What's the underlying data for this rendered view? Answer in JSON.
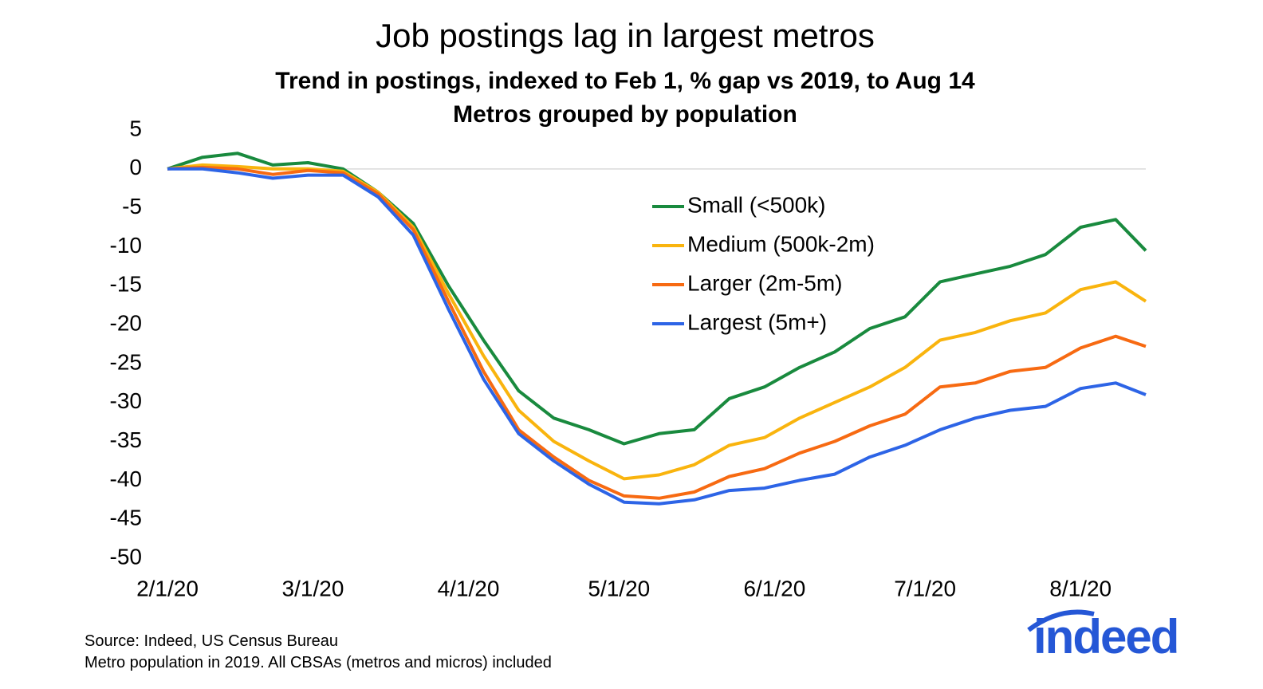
{
  "chart_data": {
    "type": "line",
    "title": "Job postings lag in largest metros",
    "subtitle": [
      "Trend in postings, indexed to Feb 1, % gap vs 2019, to Aug 14",
      "Metros grouped by population"
    ],
    "x": [
      "2/1/20",
      "2/8/20",
      "2/15/20",
      "2/22/20",
      "2/29/20",
      "3/7/20",
      "3/14/20",
      "3/21/20",
      "3/28/20",
      "4/4/20",
      "4/11/20",
      "4/18/20",
      "4/25/20",
      "5/2/20",
      "5/9/20",
      "5/16/20",
      "5/23/20",
      "5/30/20",
      "6/6/20",
      "6/13/20",
      "6/20/20",
      "6/27/20",
      "7/4/20",
      "7/11/20",
      "7/18/20",
      "7/25/20",
      "8/1/20",
      "8/8/20",
      "8/14/20"
    ],
    "series": [
      {
        "name": "Small (<500k)",
        "color": "#198a3e",
        "values": [
          0,
          1.5,
          2,
          0.5,
          0.8,
          0,
          -3,
          -7,
          -15,
          -22,
          -28.5,
          -32,
          -33.5,
          -35.3,
          -34,
          -33.5,
          -29.5,
          -28,
          -25.5,
          -23.5,
          -20.5,
          -19,
          -14.5,
          -13.5,
          -12.5,
          -11,
          -7.5,
          -6.5,
          -10.5
        ]
      },
      {
        "name": "Medium (500k-2m)",
        "color": "#f9b40e",
        "values": [
          0,
          0.5,
          0.3,
          0,
          0,
          -0.3,
          -3,
          -7.5,
          -16,
          -24,
          -31,
          -35,
          -37.5,
          -39.8,
          -39.3,
          -38,
          -35.5,
          -34.5,
          -32,
          -30,
          -28,
          -25.5,
          -22,
          -21,
          -19.5,
          -18.5,
          -15.5,
          -14.5,
          -17
        ]
      },
      {
        "name": "Larger (2m-5m)",
        "color": "#f76a12",
        "values": [
          0,
          0.2,
          0,
          -0.7,
          -0.2,
          -0.5,
          -3.2,
          -7.8,
          -17,
          -26,
          -33.5,
          -37,
          -40,
          -42,
          -42.3,
          -41.5,
          -39.5,
          -38.5,
          -36.5,
          -35,
          -33,
          -31.5,
          -28,
          -27.5,
          -26,
          -25.5,
          -23,
          -21.5,
          -22.8
        ]
      },
      {
        "name": "Largest (5m+)",
        "color": "#2d64e6",
        "values": [
          0,
          0,
          -0.5,
          -1.2,
          -0.8,
          -0.8,
          -3.6,
          -8.5,
          -18,
          -27,
          -34,
          -37.5,
          -40.5,
          -42.8,
          -43,
          -42.5,
          -41.3,
          -41,
          -40,
          -39.2,
          -37,
          -35.5,
          -33.5,
          -32,
          -31,
          -30.5,
          -28.2,
          -27.5,
          -29
        ]
      }
    ],
    "xlim": [
      "2/1/20",
      "8/14/20"
    ],
    "xticks": [
      "2/1/20",
      "3/1/20",
      "4/1/20",
      "5/1/20",
      "6/1/20",
      "7/1/20",
      "8/1/20"
    ],
    "ylim": [
      -50,
      5
    ],
    "yticks": [
      5,
      0,
      -5,
      -10,
      -15,
      -20,
      -25,
      -30,
      -35,
      -40,
      -45,
      -50
    ],
    "source": [
      "Source: Indeed, US Census Bureau",
      "Metro population in 2019. All CBSAs (metros and micros) included"
    ],
    "logo": "indeed"
  }
}
